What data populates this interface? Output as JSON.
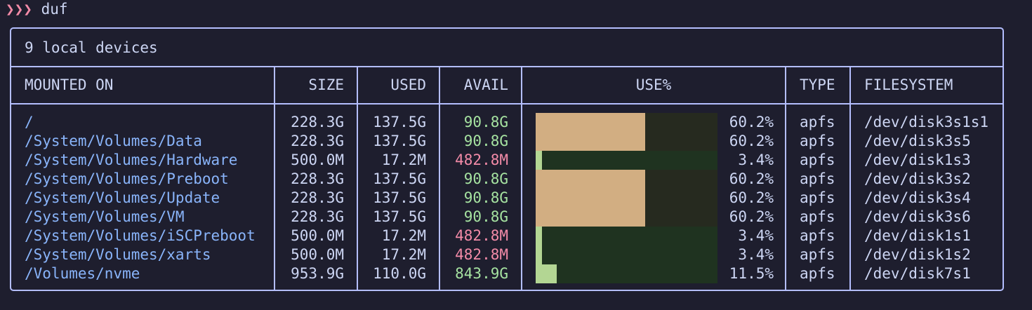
{
  "prompt": {
    "arrows": "❯❯❯",
    "command": "duf"
  },
  "table": {
    "title": "9 local devices",
    "headers": {
      "mounted_on": "MOUNTED ON",
      "size": "SIZE",
      "used": "USED",
      "avail": "AVAIL",
      "use_pct": "USE%",
      "type": "TYPE",
      "filesystem": "FILESYSTEM"
    },
    "colors": {
      "border": "#b4befe",
      "mount": "#89b4fa",
      "avail_ok": "#a6e3a1",
      "avail_low": "#f38ba8",
      "bar_warn_fill": "#d2ae82",
      "bar_ok_fill": "#b3d693",
      "bar_track": "#1f3320"
    },
    "rows": [
      {
        "mount": "/",
        "size": "228.3G",
        "used": "137.5G",
        "avail": "90.8G",
        "use_pct": "60.2%",
        "usage_fraction": 0.602,
        "type": "apfs",
        "filesystem": "/dev/disk3s1s1"
      },
      {
        "mount": "/System/Volumes/Data",
        "size": "228.3G",
        "used": "137.5G",
        "avail": "90.8G",
        "use_pct": "60.2%",
        "usage_fraction": 0.602,
        "type": "apfs",
        "filesystem": "/dev/disk3s5"
      },
      {
        "mount": "/System/Volumes/Hardware",
        "size": "500.0M",
        "used": "17.2M",
        "avail": "482.8M",
        "use_pct": "3.4%",
        "usage_fraction": 0.034,
        "type": "apfs",
        "filesystem": "/dev/disk1s3"
      },
      {
        "mount": "/System/Volumes/Preboot",
        "size": "228.3G",
        "used": "137.5G",
        "avail": "90.8G",
        "use_pct": "60.2%",
        "usage_fraction": 0.602,
        "type": "apfs",
        "filesystem": "/dev/disk3s2"
      },
      {
        "mount": "/System/Volumes/Update",
        "size": "228.3G",
        "used": "137.5G",
        "avail": "90.8G",
        "use_pct": "60.2%",
        "usage_fraction": 0.602,
        "type": "apfs",
        "filesystem": "/dev/disk3s4"
      },
      {
        "mount": "/System/Volumes/VM",
        "size": "228.3G",
        "used": "137.5G",
        "avail": "90.8G",
        "use_pct": "60.2%",
        "usage_fraction": 0.602,
        "type": "apfs",
        "filesystem": "/dev/disk3s6"
      },
      {
        "mount": "/System/Volumes/iSCPreboot",
        "size": "500.0M",
        "used": "17.2M",
        "avail": "482.8M",
        "use_pct": "3.4%",
        "usage_fraction": 0.034,
        "type": "apfs",
        "filesystem": "/dev/disk1s1"
      },
      {
        "mount": "/System/Volumes/xarts",
        "size": "500.0M",
        "used": "17.2M",
        "avail": "482.8M",
        "use_pct": "3.4%",
        "usage_fraction": 0.034,
        "type": "apfs",
        "filesystem": "/dev/disk1s2"
      },
      {
        "mount": "/Volumes/nvme",
        "size": "953.9G",
        "used": "110.0G",
        "avail": "843.9G",
        "use_pct": "11.5%",
        "usage_fraction": 0.115,
        "type": "apfs",
        "filesystem": "/dev/disk7s1"
      }
    ]
  }
}
